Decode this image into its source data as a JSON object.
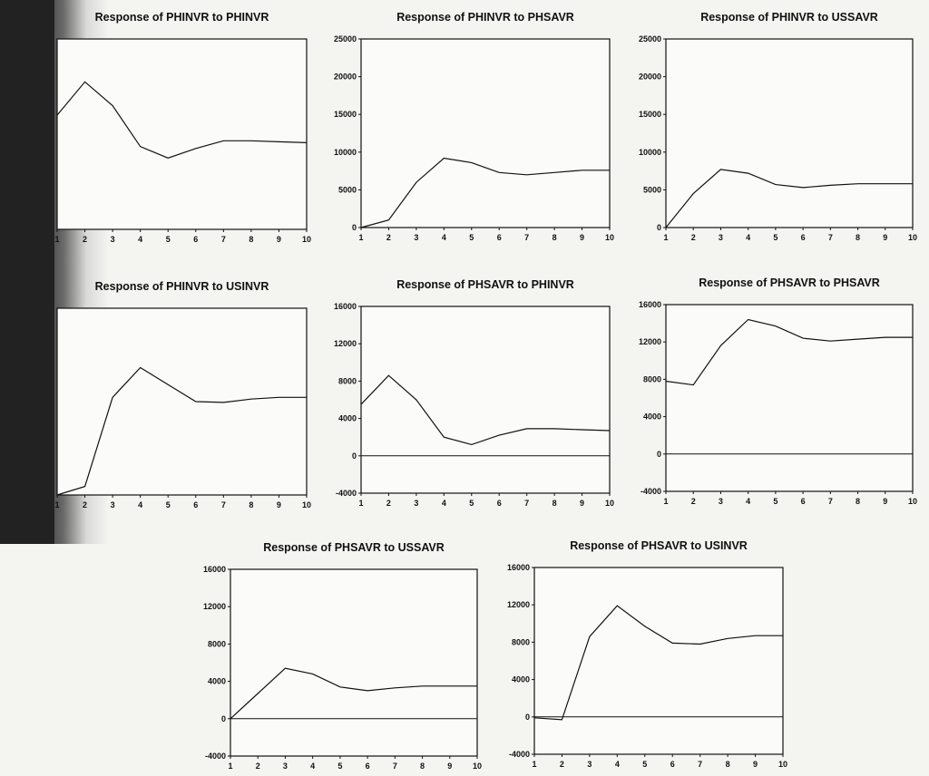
{
  "colors": {
    "line": "#111111",
    "paper": "#f4f4f1",
    "shadow": "#222222"
  },
  "chart_data": [
    {
      "type": "line",
      "title": "Response of PHINVR to PHINVR",
      "x": [
        1,
        2,
        3,
        4,
        5,
        6,
        7,
        8,
        9,
        10
      ],
      "series": [
        {
          "values": [
            12000,
            15500,
            13000,
            8700,
            7500,
            8500,
            9300,
            9300,
            9200,
            9100
          ]
        }
      ],
      "ylim": [
        0,
        20000
      ],
      "yticks": [],
      "zero_line": false
    },
    {
      "type": "line",
      "title": "Response of PHINVR to PHSAVR",
      "x": [
        1,
        2,
        3,
        4,
        5,
        6,
        7,
        8,
        9,
        10
      ],
      "series": [
        {
          "values": [
            0,
            1000,
            6000,
            9200,
            8600,
            7300,
            7000,
            7300,
            7600,
            7600
          ]
        }
      ],
      "ylim": [
        0,
        25000
      ],
      "yticks": [
        0,
        5000,
        10000,
        15000,
        20000,
        25000
      ],
      "zero_line": false
    },
    {
      "type": "line",
      "title": "Response of PHINVR to USSAVR",
      "x": [
        1,
        2,
        3,
        4,
        5,
        6,
        7,
        8,
        9,
        10
      ],
      "series": [
        {
          "values": [
            0,
            4500,
            7700,
            7200,
            5700,
            5300,
            5600,
            5800,
            5800,
            5800
          ]
        }
      ],
      "ylim": [
        0,
        25000
      ],
      "yticks": [
        0,
        5000,
        10000,
        15000,
        20000,
        25000
      ],
      "zero_line": false
    },
    {
      "type": "line",
      "title": "Response of PHINVR to USINVR",
      "x": [
        1,
        2,
        3,
        4,
        5,
        6,
        7,
        8,
        9,
        10
      ],
      "series": [
        {
          "values": [
            -4000,
            -3000,
            7500,
            11000,
            9000,
            7000,
            6900,
            7300,
            7500,
            7500
          ]
        }
      ],
      "ylim": [
        -4000,
        18000
      ],
      "yticks": [],
      "zero_line": false
    },
    {
      "type": "line",
      "title": "Response of PHSAVR to PHINVR",
      "x": [
        1,
        2,
        3,
        4,
        5,
        6,
        7,
        8,
        9,
        10
      ],
      "series": [
        {
          "values": [
            5500,
            8600,
            6000,
            2000,
            1200,
            2200,
            2900,
            2900,
            2800,
            2700
          ]
        }
      ],
      "ylim": [
        -4000,
        16000
      ],
      "yticks": [
        -4000,
        0,
        4000,
        8000,
        12000,
        16000
      ],
      "zero_line": true
    },
    {
      "type": "line",
      "title": "Response of PHSAVR to PHSAVR",
      "x": [
        1,
        2,
        3,
        4,
        5,
        6,
        7,
        8,
        9,
        10
      ],
      "series": [
        {
          "values": [
            7800,
            7400,
            11600,
            14400,
            13700,
            12400,
            12100,
            12300,
            12500,
            12500
          ]
        }
      ],
      "ylim": [
        -4000,
        16000
      ],
      "yticks": [
        -4000,
        0,
        4000,
        8000,
        12000,
        16000
      ],
      "zero_line": true
    },
    {
      "type": "line",
      "title": "Response of PHSAVR to USSAVR",
      "x": [
        1,
        2,
        3,
        4,
        5,
        6,
        7,
        8,
        9,
        10
      ],
      "series": [
        {
          "values": [
            0,
            2700,
            5400,
            4800,
            3400,
            3000,
            3300,
            3500,
            3500,
            3500
          ]
        }
      ],
      "ylim": [
        -4000,
        16000
      ],
      "yticks": [
        -4000,
        0,
        4000,
        8000,
        12000,
        16000
      ],
      "zero_line": true
    },
    {
      "type": "line",
      "title": "Response of PHSAVR to USINVR",
      "x": [
        1,
        2,
        3,
        4,
        5,
        6,
        7,
        8,
        9,
        10
      ],
      "series": [
        {
          "values": [
            -100,
            -300,
            8600,
            11900,
            9700,
            7900,
            7800,
            8400,
            8700,
            8700
          ]
        }
      ],
      "ylim": [
        -4000,
        16000
      ],
      "yticks": [
        -4000,
        0,
        4000,
        8000,
        12000,
        16000
      ],
      "zero_line": true
    }
  ]
}
